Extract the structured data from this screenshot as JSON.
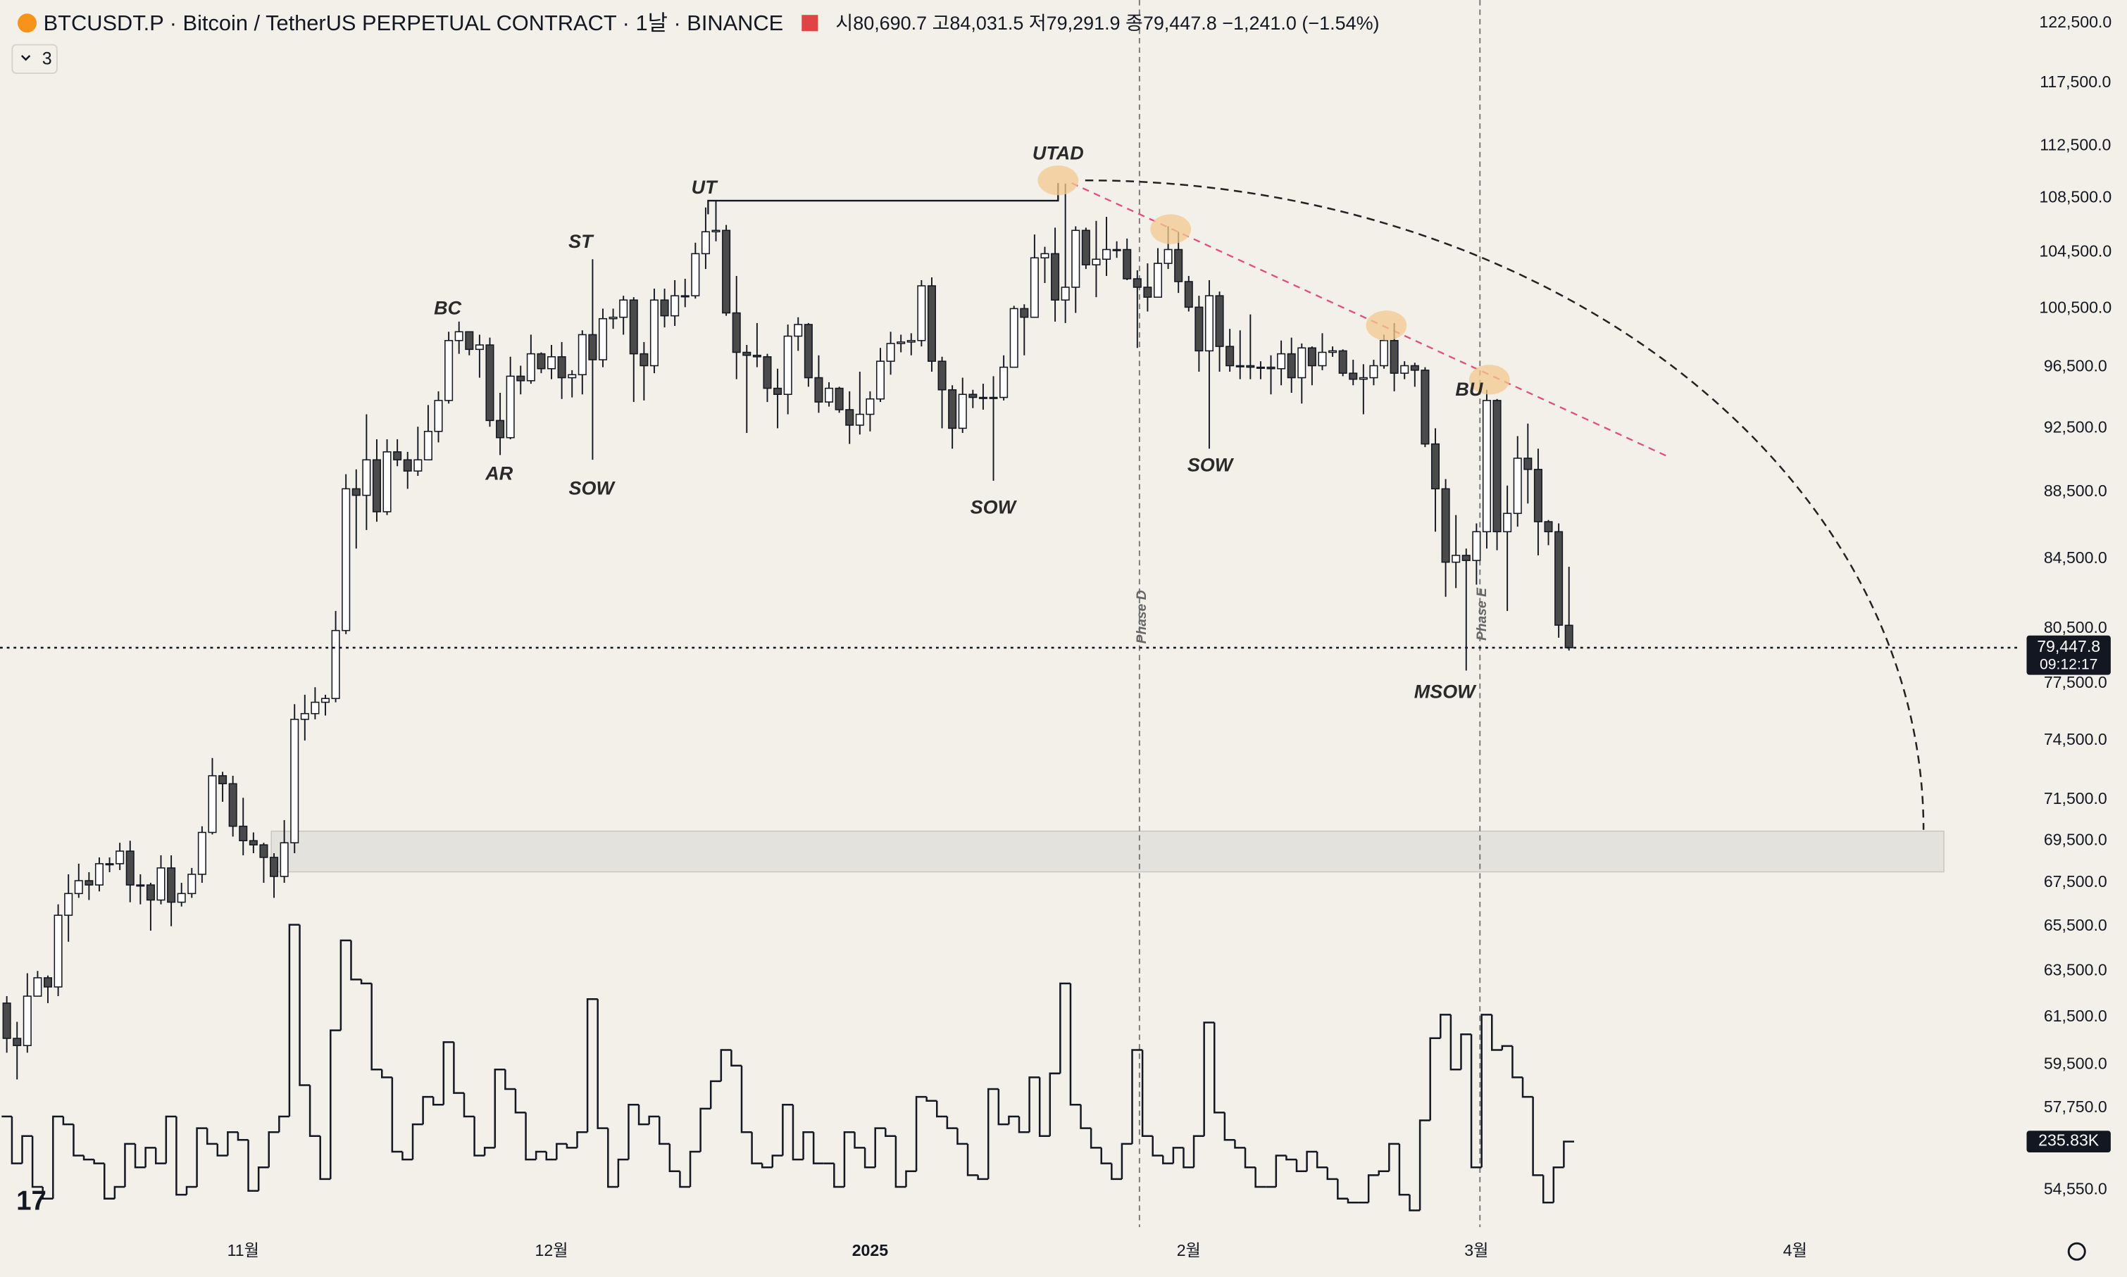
{
  "chart_data": {
    "type": "candlestick",
    "title": "BTCUSDT.P · Bitcoin / TetherUS PERPETUAL CONTRACT · 1날 · BINANCE",
    "subtitle": "시80,690.7 고84,031.5 저79,291.9 종79,447.8 −1,241.0 (−1.54%)",
    "indicators": "3",
    "countdown": "09:12:17",
    "last_price": {
      "value": 79447.8,
      "label": "79,447.8"
    },
    "log_scale": true,
    "grid": false,
    "xlim": [
      -0.66,
      196
    ],
    "xticks": [
      {
        "value": 23,
        "label": "11월"
      },
      {
        "value": 53,
        "label": "12월"
      },
      {
        "value": 84,
        "label": "2025"
      },
      {
        "value": 115,
        "label": "2월"
      },
      {
        "value": 143,
        "label": "3월"
      },
      {
        "value": 174,
        "label": "4월"
      }
    ],
    "ylim": [
      53170,
      124470
    ],
    "yticks": [
      {
        "value": 122500,
        "label": "122,500.0"
      },
      {
        "value": 117500,
        "label": "117,500.0"
      },
      {
        "value": 112500,
        "label": "112,500.0"
      },
      {
        "value": 108500,
        "label": "108,500.0"
      },
      {
        "value": 104500,
        "label": "104,500.0"
      },
      {
        "value": 100500,
        "label": "100,500.0"
      },
      {
        "value": 96500,
        "label": "96,500.0"
      },
      {
        "value": 92500,
        "label": "92,500.0"
      },
      {
        "value": 88500,
        "label": "88,500.0"
      },
      {
        "value": 84500,
        "label": "84,500.0"
      },
      {
        "value": 80500,
        "label": "80,500.0"
      },
      {
        "value": 77500,
        "label": "77,500.0"
      },
      {
        "value": 74500,
        "label": "74,500.0"
      },
      {
        "value": 71500,
        "label": "71,500.0"
      },
      {
        "value": 69500,
        "label": "69,500.0"
      },
      {
        "value": 67500,
        "label": "67,500.0"
      },
      {
        "value": 65500,
        "label": "65,500.0"
      },
      {
        "value": 63500,
        "label": "63,500.0"
      },
      {
        "value": 61500,
        "label": "61,500.0"
      },
      {
        "value": 59500,
        "label": "59,500.0"
      },
      {
        "value": 57750,
        "label": "57,750.0"
      },
      {
        "value": 54550,
        "label": "54,550.0"
      }
    ],
    "annotations": [
      "BC",
      "AR",
      "ST",
      "SOW",
      "UT",
      "SOW",
      "UTAD",
      "SOW",
      "Phase D",
      "BU",
      "MSOW",
      "Phase E"
    ],
    "series": [
      {
        "up_color": "#ffffff",
        "down_color": "#4a4a4a",
        "border_color": "#131722",
        "open": [
          62100,
          60600,
          60300,
          62400,
          63200,
          62800,
          66000,
          67000,
          67600,
          67400,
          68400,
          68400,
          69000,
          67400,
          67400,
          66700,
          68200,
          66600,
          67000,
          67900,
          69900,
          72700,
          72300,
          70200,
          69500,
          69300,
          68700,
          67800,
          69400,
          75600,
          75900,
          76500,
          76700,
          80400,
          88700,
          88300,
          90500,
          87300,
          91000,
          90500,
          89800,
          90500,
          92300,
          94300,
          98300,
          98900,
          97700,
          98000,
          93000,
          91900,
          95900,
          95600,
          97400,
          96400,
          97200,
          95800,
          96000,
          98700,
          97000,
          99800,
          99900,
          101100,
          97400,
          96600,
          101100,
          100000,
          101400,
          101400,
          104400,
          106000,
          106100,
          100200,
          97500,
          97300,
          97200,
          95100,
          94700,
          98600,
          99400,
          95800,
          94200,
          95100,
          93700,
          92700,
          93400,
          94400,
          96900,
          98100,
          98200,
          98300,
          102100,
          96900,
          95000,
          92500,
          94700,
          94500,
          94500,
          94500,
          96500,
          100500,
          99900,
          104100,
          104400,
          101100,
          102000,
          106100,
          103600,
          104000,
          104700,
          104700,
          102600,
          102000,
          101300,
          103700,
          104700,
          102400,
          100600,
          97600,
          101400,
          97900,
          96600,
          96600,
          96500,
          96500,
          96400,
          97400,
          95800,
          97800,
          96600,
          97500,
          97600,
          96100,
          95700,
          95800,
          96600,
          98300,
          96100,
          96600,
          96300,
          91500,
          88700,
          84300,
          84700,
          84400,
          86100,
          94300,
          86100,
          87200,
          90600,
          89900,
          86700,
          86100,
          80690.7
        ],
        "high": [
          62400,
          61300,
          63400,
          63500,
          63300,
          66500,
          67900,
          68400,
          68000,
          68700,
          68700,
          69400,
          69500,
          67900,
          67500,
          68800,
          68800,
          67500,
          68200,
          70200,
          73600,
          72900,
          72700,
          71600,
          69900,
          69400,
          68900,
          70500,
          76400,
          76900,
          77300,
          76900,
          81500,
          89600,
          89900,
          93400,
          91800,
          91800,
          91800,
          91000,
          92600,
          94000,
          94900,
          98900,
          99600,
          98800,
          98700,
          98500,
          94800,
          97200,
          96600,
          98700,
          97500,
          98000,
          98200,
          96300,
          99000,
          104000,
          100500,
          100500,
          101400,
          101300,
          98200,
          101900,
          101900,
          102500,
          102600,
          105200,
          107800,
          108300,
          106500,
          102800,
          98000,
          99500,
          97400,
          96400,
          99400,
          99900,
          99500,
          97300,
          95500,
          95200,
          94900,
          96200,
          94900,
          97800,
          98900,
          98700,
          98800,
          102500,
          102700,
          97200,
          95300,
          95800,
          95000,
          95400,
          95900,
          97300,
          100700,
          100800,
          105800,
          104900,
          106300,
          109600,
          106400,
          106300,
          106800,
          107100,
          105300,
          105500,
          103200,
          103700,
          104800,
          106400,
          106000,
          102800,
          101400,
          102500,
          101700,
          99100,
          99000,
          100100,
          96900,
          97300,
          98300,
          98500,
          98100,
          97900,
          98800,
          97900,
          97700,
          97000,
          96700,
          97000,
          98700,
          99500,
          96900,
          96800,
          96500,
          92500,
          89300,
          87100,
          85100,
          86600,
          95000,
          94400,
          88900,
          92000,
          92800,
          91200,
          86800,
          86600,
          84031.5
        ],
        "low": [
          60000,
          58900,
          60000,
          62400,
          62100,
          62400,
          64800,
          66800,
          66700,
          67100,
          68000,
          68100,
          66600,
          66500,
          65300,
          66500,
          65500,
          66400,
          66800,
          67500,
          69800,
          71400,
          69700,
          68800,
          68900,
          67500,
          66800,
          67500,
          68900,
          74500,
          75600,
          75800,
          76500,
          80200,
          85100,
          86200,
          86700,
          87100,
          90100,
          88700,
          89500,
          90500,
          91600,
          94100,
          97400,
          97300,
          95800,
          92600,
          90800,
          91800,
          94700,
          95400,
          96100,
          95700,
          94400,
          94500,
          94700,
          90500,
          96500,
          99100,
          98700,
          94200,
          94300,
          96100,
          99200,
          99300,
          100600,
          101200,
          103300,
          105300,
          100000,
          95700,
          92200,
          96500,
          94200,
          92500,
          93400,
          97600,
          95200,
          93500,
          93900,
          93500,
          91500,
          92100,
          92300,
          94200,
          96000,
          97500,
          97300,
          97900,
          96200,
          92500,
          91200,
          92200,
          93800,
          93700,
          89200,
          94300,
          96500,
          97300,
          99900,
          102300,
          99600,
          99500,
          100200,
          103300,
          101300,
          102800,
          104100,
          102500,
          97800,
          100300,
          101300,
          103300,
          101600,
          100300,
          96200,
          91200,
          96200,
          96200,
          95700,
          95700,
          95700,
          94700,
          95300,
          94800,
          94100,
          95300,
          96300,
          97200,
          95900,
          95300,
          93400,
          95300,
          96400,
          94900,
          95700,
          95200,
          91300,
          86100,
          82300,
          82800,
          78200,
          83000,
          85100,
          85000,
          81500,
          86400,
          87800,
          84700,
          85300,
          80000,
          79291.9
        ],
        "close": [
          60600,
          60300,
          62400,
          63200,
          62800,
          66000,
          67000,
          67600,
          67400,
          68400,
          68400,
          69000,
          67400,
          67400,
          66700,
          68200,
          66600,
          67000,
          67900,
          69900,
          72700,
          72300,
          70200,
          69500,
          69300,
          68700,
          67800,
          69400,
          75600,
          75900,
          76500,
          76700,
          80400,
          88700,
          88300,
          90500,
          87300,
          91000,
          90500,
          89800,
          90500,
          92300,
          94300,
          98300,
          98900,
          97700,
          98000,
          93000,
          91900,
          95900,
          95600,
          97400,
          96400,
          97200,
          95800,
          96000,
          98700,
          97000,
          99800,
          99900,
          101100,
          97400,
          96600,
          101100,
          100000,
          101400,
          101400,
          104400,
          106000,
          106100,
          100200,
          97500,
          97300,
          97200,
          95100,
          94700,
          98600,
          99400,
          95800,
          94200,
          95100,
          93700,
          92700,
          93400,
          94400,
          96900,
          98100,
          98200,
          98300,
          102100,
          96900,
          95000,
          92500,
          94700,
          94500,
          94500,
          94500,
          96500,
          100500,
          99900,
          104100,
          104400,
          101100,
          102000,
          106100,
          103600,
          104000,
          104700,
          104700,
          102600,
          102000,
          101300,
          103700,
          104700,
          102400,
          100600,
          97600,
          101400,
          97900,
          96600,
          96600,
          96500,
          96500,
          96400,
          97400,
          95800,
          97800,
          96600,
          97500,
          97600,
          96100,
          95700,
          95800,
          96600,
          98300,
          96100,
          96600,
          96300,
          91500,
          88700,
          84300,
          84700,
          84400,
          86100,
          94300,
          86100,
          87200,
          90600,
          89900,
          86700,
          86100,
          80700,
          79447.8
        ]
      }
    ],
    "volume": {
      "color": "#131722",
      "last_label": "235.83K",
      "values": [
        300000,
        180000,
        250000,
        120000,
        90000,
        300000,
        280000,
        200000,
        190000,
        180000,
        90000,
        120000,
        230000,
        170000,
        220000,
        180000,
        300000,
        100000,
        120000,
        270000,
        230000,
        200000,
        260000,
        240000,
        110000,
        170000,
        260000,
        300000,
        790000,
        380000,
        250000,
        140000,
        520000,
        750000,
        650000,
        640000,
        420000,
        400000,
        210000,
        190000,
        280000,
        350000,
        330000,
        490000,
        360000,
        300000,
        200000,
        220000,
        420000,
        370000,
        310000,
        190000,
        210000,
        190000,
        230000,
        220000,
        260000,
        600000,
        270000,
        120000,
        190000,
        330000,
        280000,
        300000,
        230000,
        160000,
        120000,
        210000,
        320000,
        390000,
        470000,
        430000,
        260000,
        180000,
        170000,
        200000,
        330000,
        190000,
        260000,
        180000,
        180000,
        120000,
        260000,
        220000,
        170000,
        270000,
        250000,
        120000,
        160000,
        350000,
        340000,
        300000,
        270000,
        230000,
        150000,
        140000,
        370000,
        280000,
        300000,
        260000,
        400000,
        250000,
        410000,
        640000,
        330000,
        270000,
        220000,
        180000,
        140000,
        230000,
        470000,
        250000,
        200000,
        180000,
        220000,
        170000,
        250000,
        540000,
        310000,
        240000,
        220000,
        170000,
        120000,
        120000,
        200000,
        190000,
        160000,
        210000,
        170000,
        140000,
        90000,
        80000,
        80000,
        150000,
        160000,
        230000,
        100000,
        60000,
        290000,
        500000,
        560000,
        420000,
        510000,
        170000,
        560000,
        470000,
        480000,
        400000,
        350000,
        150000,
        80000,
        170000,
        235830
      ]
    }
  }
}
